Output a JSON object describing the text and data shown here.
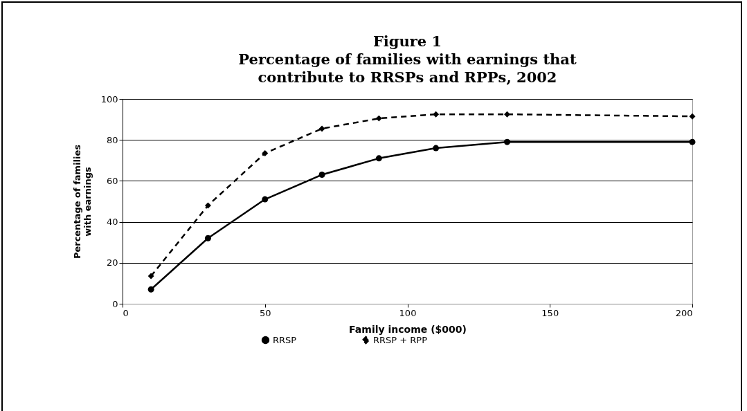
{
  "chart_data": {
    "type": "line",
    "title": "Figure 1",
    "subtitle": "Percentage of families with earnings that contribute to RRSPs and RPPs, 2002",
    "xlabel": "Family income ($000)",
    "ylabel": "Percentage of families with earnings",
    "x": [
      10,
      30,
      50,
      70,
      90,
      110,
      135,
      200
    ],
    "series": [
      {
        "name": "RRSP",
        "color": "#000000",
        "marker": "circle",
        "line_style": "solid",
        "values": [
          7,
          32,
          51,
          63,
          71,
          76,
          79,
          79
        ]
      },
      {
        "name": "RRSP + RPP",
        "color": "#000000",
        "marker": "diamond",
        "line_style": "dashed",
        "values": [
          13.5,
          48,
          73.5,
          85.5,
          90.5,
          92.5,
          92.5,
          91.5
        ]
      }
    ],
    "xlim": [
      0,
      200
    ],
    "xticks": [
      0,
      50,
      100,
      150,
      200
    ],
    "ylim": [
      0,
      100
    ],
    "yticks": [
      0,
      20,
      40,
      60,
      80,
      100
    ],
    "grid": "y",
    "legend": "bottom"
  }
}
